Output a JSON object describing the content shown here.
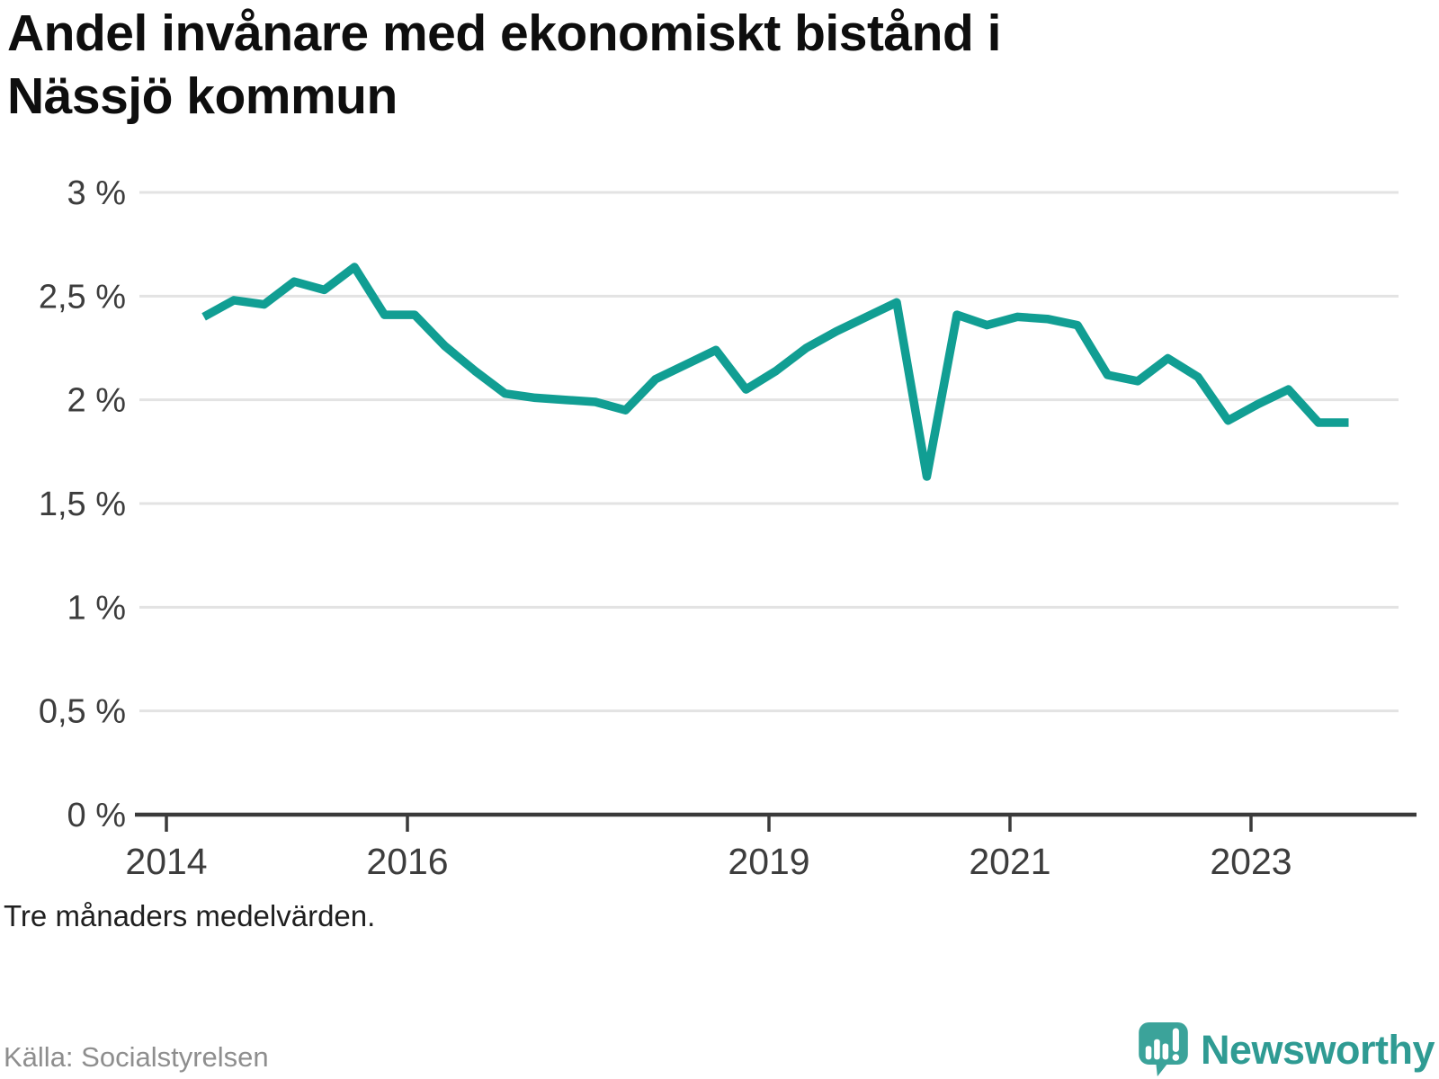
{
  "title": "Andel invånare med ekonomiskt bistånd i Nässjö kommun",
  "footnote": "Tre månaders medelvärden.",
  "source": "Källa: Socialstyrelsen",
  "branding": {
    "name": "Newsworthy",
    "icon": "newsworthy-speech-bubble-chart-icon"
  },
  "colors": {
    "line": "#119e93",
    "grid": "#e3e3e3",
    "axis": "#3a3a3a",
    "tick_text": "#3d3d3d",
    "logo_teal": "#3ba39a",
    "logo_text": "#2f9b93"
  },
  "chart_data": {
    "type": "line",
    "title": "Andel invånare med ekonomiskt bistånd i Nässjö kommun",
    "subtitle": "Tre månaders medelvärden.",
    "source": "Källa: Socialstyrelsen",
    "xlabel": "",
    "ylabel": "",
    "unit": "%",
    "grid": "horizontal",
    "legend": "none",
    "xlim": [
      2013.776,
      2024.224
    ],
    "ylim": [
      0,
      3
    ],
    "x_tick_values": [
      2014,
      2016,
      2019,
      2021,
      2023
    ],
    "x_tick_labels": [
      "2014",
      "2016",
      "2019",
      "2021",
      "2023"
    ],
    "y_tick_values": [
      3,
      2.5,
      2,
      1.5,
      1,
      0.5,
      0
    ],
    "y_tick_labels": [
      "3 %",
      "2,5 %",
      "2 %",
      "1,5 %",
      "1 %",
      "0,5 %",
      "0 %"
    ],
    "series": [
      {
        "name": "Nässjö kommun",
        "points": [
          [
            2014.31,
            2.4
          ],
          [
            2014.56,
            2.48
          ],
          [
            2014.81,
            2.46
          ],
          [
            2015.06,
            2.57
          ],
          [
            2015.31,
            2.53
          ],
          [
            2015.56,
            2.64
          ],
          [
            2015.81,
            2.41
          ],
          [
            2016.06,
            2.41
          ],
          [
            2016.31,
            2.26
          ],
          [
            2016.56,
            2.14
          ],
          [
            2016.81,
            2.03
          ],
          [
            2017.06,
            2.01
          ],
          [
            2017.31,
            2.0
          ],
          [
            2017.56,
            1.99
          ],
          [
            2017.81,
            1.95
          ],
          [
            2018.06,
            2.1
          ],
          [
            2018.31,
            2.17
          ],
          [
            2018.56,
            2.24
          ],
          [
            2018.81,
            2.05
          ],
          [
            2019.06,
            2.14
          ],
          [
            2019.31,
            2.25
          ],
          [
            2019.56,
            2.33
          ],
          [
            2019.81,
            2.4
          ],
          [
            2020.06,
            2.47
          ],
          [
            2020.31,
            1.63
          ],
          [
            2020.56,
            2.41
          ],
          [
            2020.81,
            2.36
          ],
          [
            2021.06,
            2.4
          ],
          [
            2021.31,
            2.39
          ],
          [
            2021.56,
            2.36
          ],
          [
            2021.81,
            2.12
          ],
          [
            2022.06,
            2.09
          ],
          [
            2022.31,
            2.2
          ],
          [
            2022.56,
            2.11
          ],
          [
            2022.81,
            1.9
          ],
          [
            2023.06,
            1.98
          ],
          [
            2023.31,
            2.05
          ],
          [
            2023.56,
            1.89
          ],
          [
            2023.81,
            1.89
          ]
        ]
      }
    ]
  }
}
